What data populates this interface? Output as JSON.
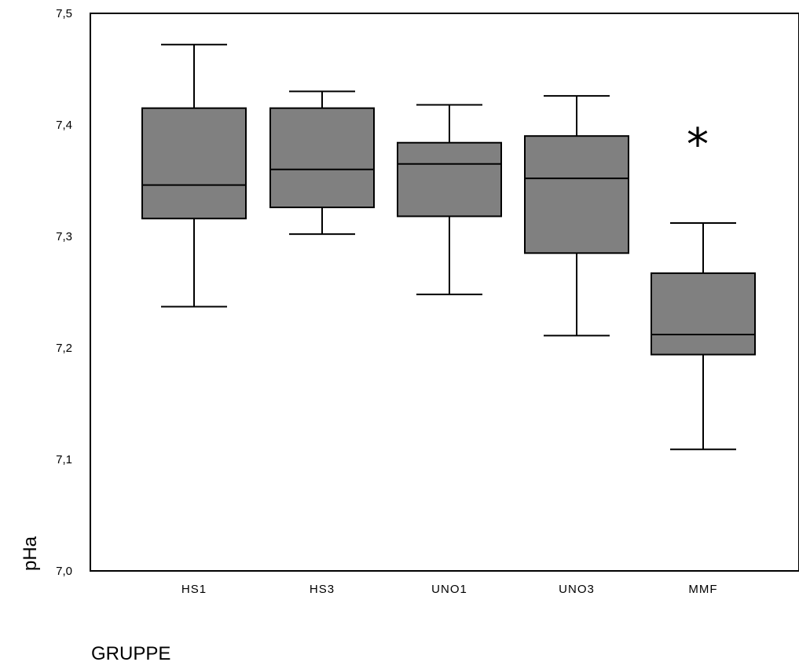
{
  "chart_data": {
    "type": "box",
    "xlabel": "GRUPPE",
    "ylabel": "pHa",
    "ylim": [
      7.0,
      7.5
    ],
    "yticks": [
      7.0,
      7.1,
      7.2,
      7.3,
      7.4,
      7.5
    ],
    "ytick_labels": [
      "7,0",
      "7,1",
      "7,2",
      "7,3",
      "7,4",
      "7,5"
    ],
    "categories": [
      "HS1",
      "HS3",
      "UNO1",
      "UNO3",
      "MMF"
    ],
    "boxes": [
      {
        "category": "HS1",
        "whisker_low": 7.237,
        "q1": 7.316,
        "median": 7.346,
        "q3": 7.415,
        "whisker_high": 7.472
      },
      {
        "category": "HS3",
        "whisker_low": 7.302,
        "q1": 7.326,
        "median": 7.36,
        "q3": 7.415,
        "whisker_high": 7.43
      },
      {
        "category": "UNO1",
        "whisker_low": 7.248,
        "q1": 7.318,
        "median": 7.365,
        "q3": 7.384,
        "whisker_high": 7.418
      },
      {
        "category": "UNO3",
        "whisker_low": 7.211,
        "q1": 7.285,
        "median": 7.352,
        "q3": 7.39,
        "whisker_high": 7.426
      },
      {
        "category": "MMF",
        "whisker_low": 7.109,
        "q1": 7.194,
        "median": 7.212,
        "q3": 7.267,
        "whisker_high": 7.312
      }
    ],
    "annotations": [
      {
        "category": "MMF",
        "text": "*"
      }
    ],
    "box_color": "#808080",
    "line_color": "#000000",
    "grid": false,
    "legend": "none"
  }
}
